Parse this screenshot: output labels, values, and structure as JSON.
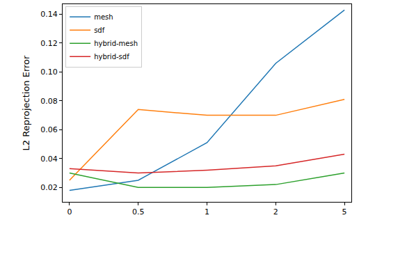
{
  "chart_data": {
    "type": "line",
    "y_label": "L2 Reprojection Error",
    "categories": [
      "0",
      "0.5",
      "1",
      "2",
      "5"
    ],
    "series": [
      {
        "name": "mesh",
        "color": "#1f77b4",
        "values": [
          0.018,
          0.025,
          0.051,
          0.106,
          0.143
        ]
      },
      {
        "name": "sdf",
        "color": "#ff7f0e",
        "values": [
          0.025,
          0.074,
          0.07,
          0.07,
          0.081
        ]
      },
      {
        "name": "hybrid-mesh",
        "color": "#2ca02c",
        "values": [
          0.03,
          0.02,
          0.02,
          0.022,
          0.03
        ]
      },
      {
        "name": "hybrid-sdf",
        "color": "#d62728",
        "values": [
          0.033,
          0.03,
          0.032,
          0.035,
          0.043
        ]
      }
    ],
    "ylim": [
      0.01,
      0.147
    ],
    "yticks": [
      0.02,
      0.04,
      0.06,
      0.08,
      {
        "value": 0.1,
        "label": "0.10"
      },
      0.12,
      0.14
    ],
    "grid": false,
    "legend": "top-left"
  }
}
